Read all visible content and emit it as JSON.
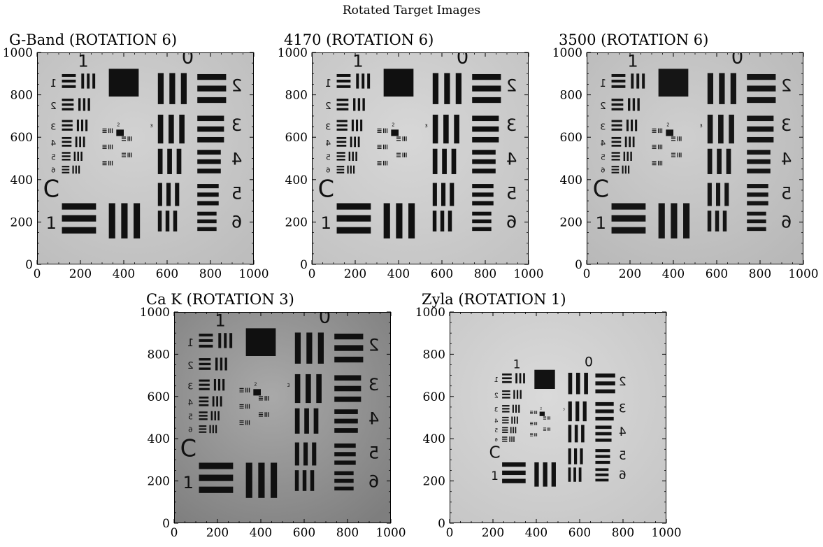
{
  "figure_title": "Rotated Target Images",
  "chart_data": [
    {
      "type": "image",
      "title": "G-Band (ROTATION 6)",
      "xlim": [
        0,
        1000
      ],
      "ylim": [
        0,
        1000
      ],
      "xticks": [
        0,
        200,
        400,
        600,
        800,
        1000
      ],
      "yticks": [
        0,
        200,
        400,
        600,
        800,
        1000
      ],
      "image": "USAF 1951 resolution target, grayscale, light background",
      "tone": {
        "bg": "#d2d2d2",
        "bg_dark": "#bdbdbd",
        "ink": "#111111"
      }
    },
    {
      "type": "image",
      "title": "4170 (ROTATION 6)",
      "xlim": [
        0,
        1000
      ],
      "ylim": [
        0,
        1000
      ],
      "xticks": [
        0,
        200,
        400,
        600,
        800,
        1000
      ],
      "yticks": [
        0,
        200,
        400,
        600,
        800,
        1000
      ],
      "image": "USAF 1951 resolution target, grayscale, light background",
      "tone": {
        "bg": "#d7d7d7",
        "bg_dark": "#c3c3c3",
        "ink": "#101010"
      }
    },
    {
      "type": "image",
      "title": "3500 (ROTATION 6)",
      "xlim": [
        0,
        1000
      ],
      "ylim": [
        0,
        1000
      ],
      "xticks": [
        0,
        200,
        400,
        600,
        800,
        1000
      ],
      "yticks": [
        0,
        200,
        400,
        600,
        800,
        1000
      ],
      "image": "USAF 1951 resolution target, grayscale, light background",
      "tone": {
        "bg": "#cfcfcf",
        "bg_dark": "#b8b8b8",
        "ink": "#151515"
      }
    },
    {
      "type": "image",
      "title": "Ca K (ROTATION 3)",
      "xlim": [
        0,
        1000
      ],
      "ylim": [
        0,
        1000
      ],
      "xticks": [
        0,
        200,
        400,
        600,
        800,
        1000
      ],
      "yticks": [
        0,
        200,
        400,
        600,
        800,
        1000
      ],
      "image": "USAF 1951 resolution target, grayscale, darker vignetted background",
      "tone": {
        "bg": "#a9a9a9",
        "bg_dark": "#7e7e7e",
        "ink": "#101010"
      }
    },
    {
      "type": "image",
      "title": "Zyla (ROTATION 1)",
      "xlim": [
        0,
        1000
      ],
      "ylim": [
        0,
        1000
      ],
      "xticks": [
        0,
        200,
        400,
        600,
        800,
        1000
      ],
      "yticks": [
        0,
        200,
        400,
        600,
        800,
        1000
      ],
      "image": "USAF 1951 resolution target, grayscale, smaller target on light background",
      "tone": {
        "bg": "#dadada",
        "bg_dark": "#c6c6c6",
        "ink": "#121212"
      }
    }
  ]
}
